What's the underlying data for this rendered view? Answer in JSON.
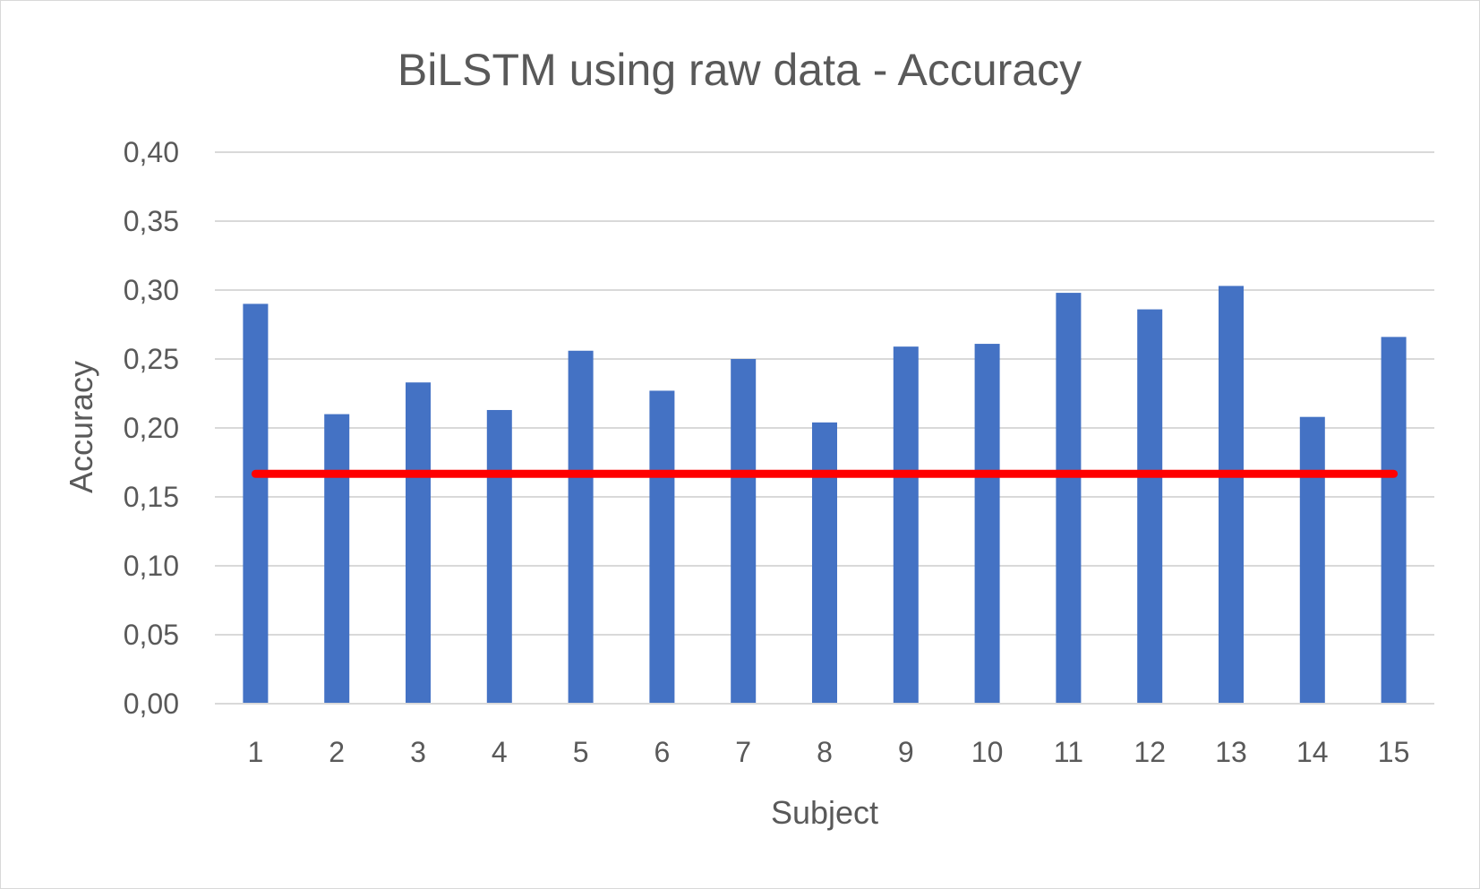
{
  "chart_data": {
    "type": "bar",
    "title": "BiLSTM using raw data - Accuracy",
    "xlabel": "Subject",
    "ylabel": "Accuracy",
    "categories": [
      "1",
      "2",
      "3",
      "4",
      "5",
      "6",
      "7",
      "8",
      "9",
      "10",
      "11",
      "12",
      "13",
      "14",
      "15"
    ],
    "series": [
      {
        "values": [
          0.29,
          0.21,
          0.233,
          0.213,
          0.256,
          0.227,
          0.25,
          0.204,
          0.259,
          0.261,
          0.298,
          0.286,
          0.303,
          0.208,
          0.266
        ]
      }
    ],
    "reference_line": {
      "value": 0.1667,
      "color": "#ff0000"
    },
    "ylim": [
      0,
      0.4
    ],
    "yticks": [
      "0,00",
      "0,05",
      "0,10",
      "0,15",
      "0,20",
      "0,25",
      "0,30",
      "0,35",
      "0,40"
    ],
    "ytick_values": [
      0,
      0.05,
      0.1,
      0.15,
      0.2,
      0.25,
      0.3,
      0.35,
      0.4
    ],
    "grid": true,
    "legend": "none",
    "bar_color": "#4472c4",
    "grid_color": "#d9d9d9",
    "text_color": "#595959"
  }
}
